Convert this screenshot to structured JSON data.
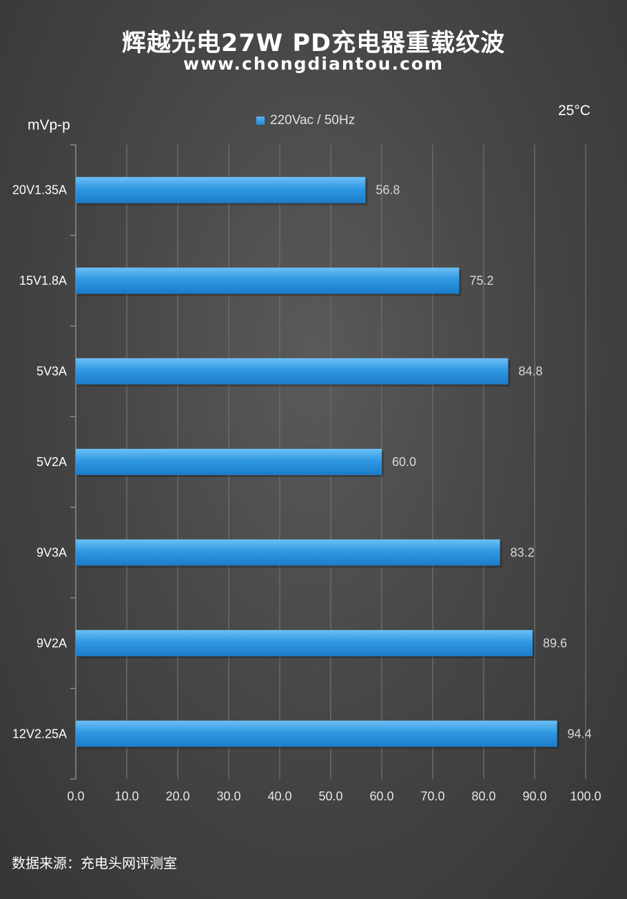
{
  "header": {
    "title": "辉越光电27W  PD充电器重载纹波",
    "subtitle": "www.chongdiantou.com"
  },
  "unit_label": "mVp-p",
  "temperature": "25°C",
  "footer": {
    "source": "数据来源：充电头网评测室"
  },
  "colors": {
    "bar": "#2f93e0",
    "bar_light": "#5ab4f2",
    "bar_dark": "#1c7fcf",
    "background": "#474747"
  },
  "chart_data": {
    "type": "bar",
    "orientation": "horizontal",
    "title": "辉越光电27W  PD充电器重载纹波",
    "subtitle": "www.chongdiantou.com",
    "ylabel": "mVp-p",
    "annotation": "25°C",
    "legend": "top-center",
    "grid": true,
    "categories": [
      "20V1.35A",
      "15V1.8A",
      "5V3A",
      "5V2A",
      "9V3A",
      "9V2A",
      "12V2.25A"
    ],
    "series": [
      {
        "name": "220Vac / 50Hz",
        "values": [
          56.8,
          75.2,
          84.8,
          60.0,
          83.2,
          89.6,
          94.4
        ]
      }
    ],
    "value_labels": [
      "56.8",
      "75.2",
      "84.8",
      "60.0",
      "83.2",
      "89.6",
      "94.4"
    ],
    "xlim": [
      0,
      100
    ],
    "xticks": [
      "0.0",
      "10.0",
      "20.0",
      "30.0",
      "40.0",
      "50.0",
      "60.0",
      "70.0",
      "80.0",
      "90.0",
      "100.0"
    ]
  }
}
